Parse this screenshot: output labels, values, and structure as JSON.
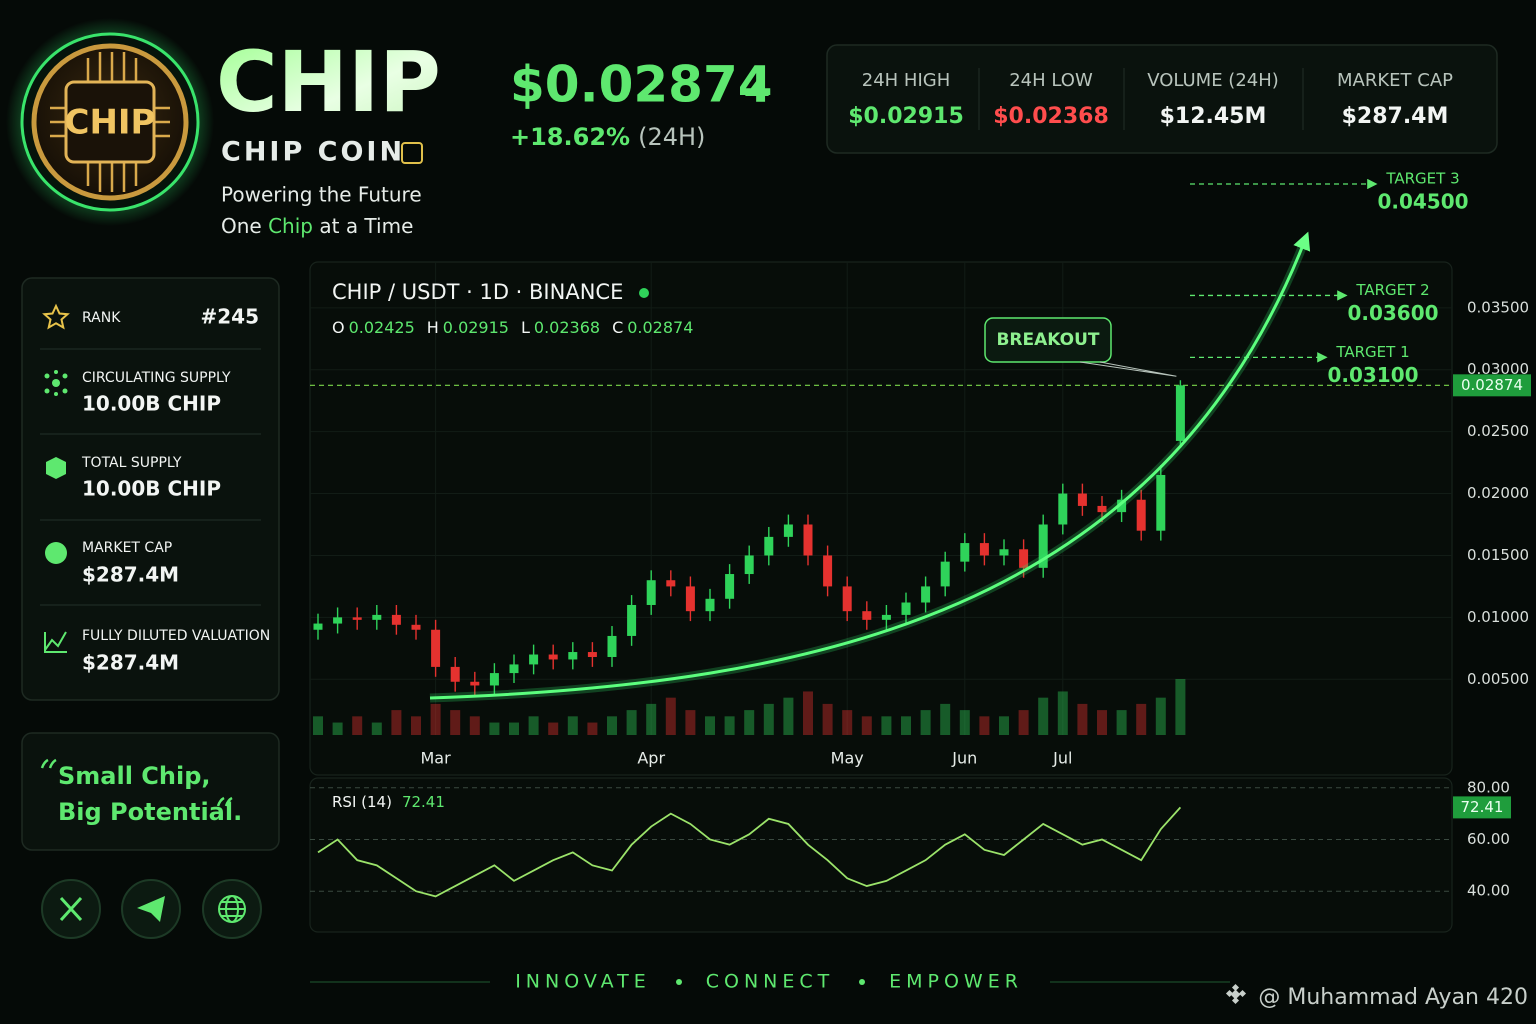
{
  "header": {
    "logo_text": "CHIP",
    "ticker": "CHIP",
    "name": "CHIP COIN",
    "tagline_1": "Powering the Future",
    "tagline_2_pre": "One ",
    "tagline_2_highlight": "Chip",
    "tagline_2_post": " at a Time",
    "price": "$0.02874",
    "change": "+18.62%",
    "change_period": "(24H)"
  },
  "stats": [
    {
      "label": "24H HIGH",
      "value": "$0.02915"
    },
    {
      "label": "24H LOW",
      "value": "$0.02368"
    },
    {
      "label": "VOLUME (24H)",
      "value": "$12.45M"
    },
    {
      "label": "MARKET CAP",
      "value": "$287.4M"
    }
  ],
  "sidebar": [
    {
      "label": "RANK",
      "value": "#245"
    },
    {
      "label": "CIRCULATING SUPPLY",
      "value": "10.00B CHIP"
    },
    {
      "label": "TOTAL SUPPLY",
      "value": "10.00B CHIP"
    },
    {
      "label": "MARKET CAP",
      "value": "$287.4M"
    },
    {
      "label": "FULLY DILUTED VALUATION",
      "value": "$287.4M"
    }
  ],
  "quote": {
    "line_1": "Small Chip,",
    "line_2": "Big Potential."
  },
  "footer": {
    "motto": [
      "INNOVATE",
      "CONNECT",
      "EMPOWER"
    ],
    "credit": "@ Muhammad Ayan 420"
  },
  "chart_data": {
    "type": "candlestick",
    "title": "CHIP / USDT · 1D · BINANCE",
    "ohlc_labels": [
      "O",
      "H",
      "L",
      "C"
    ],
    "open": [
      0.009,
      0.0095,
      0.01,
      0.0098,
      0.0102,
      0.0094,
      0.009,
      0.006,
      0.0048,
      0.0045,
      0.0055,
      0.0062,
      0.007,
      0.0066,
      0.0072,
      0.0068,
      0.0085,
      0.011,
      0.013,
      0.0125,
      0.0105,
      0.0115,
      0.0135,
      0.015,
      0.0165,
      0.0175,
      0.015,
      0.0125,
      0.0105,
      0.0098,
      0.0102,
      0.0112,
      0.0125,
      0.0145,
      0.016,
      0.015,
      0.0155,
      0.014,
      0.0175,
      0.02,
      0.019,
      0.0185,
      0.0195,
      0.017,
      0.02425
    ],
    "high": [
      0.0103,
      0.0108,
      0.0108,
      0.011,
      0.011,
      0.0102,
      0.0098,
      0.0068,
      0.0056,
      0.0063,
      0.007,
      0.0078,
      0.0078,
      0.008,
      0.008,
      0.0093,
      0.0118,
      0.0138,
      0.0138,
      0.0133,
      0.0123,
      0.0143,
      0.0158,
      0.0173,
      0.0183,
      0.0183,
      0.0158,
      0.0133,
      0.0113,
      0.011,
      0.012,
      0.0133,
      0.0153,
      0.0168,
      0.0168,
      0.0163,
      0.0163,
      0.0183,
      0.0208,
      0.0208,
      0.0198,
      0.0203,
      0.0203,
      0.0223,
      0.02915
    ],
    "low": [
      0.0082,
      0.0087,
      0.009,
      0.009,
      0.0086,
      0.0082,
      0.0052,
      0.004,
      0.0037,
      0.0037,
      0.0047,
      0.0054,
      0.0058,
      0.0058,
      0.006,
      0.006,
      0.0077,
      0.0102,
      0.0117,
      0.0097,
      0.0097,
      0.0107,
      0.0127,
      0.0142,
      0.0157,
      0.0142,
      0.0117,
      0.0097,
      0.009,
      0.009,
      0.0094,
      0.0104,
      0.0117,
      0.0137,
      0.0142,
      0.0142,
      0.0132,
      0.0132,
      0.0167,
      0.0182,
      0.0177,
      0.0177,
      0.0162,
      0.0162,
      0.02368
    ],
    "close": [
      0.0095,
      0.01,
      0.0098,
      0.0102,
      0.0094,
      0.009,
      0.006,
      0.0048,
      0.0045,
      0.0055,
      0.0062,
      0.007,
      0.0066,
      0.0072,
      0.0068,
      0.0085,
      0.011,
      0.013,
      0.0125,
      0.0105,
      0.0115,
      0.0135,
      0.015,
      0.0165,
      0.0175,
      0.015,
      0.0125,
      0.0105,
      0.0098,
      0.0102,
      0.0112,
      0.0125,
      0.0145,
      0.016,
      0.015,
      0.0155,
      0.014,
      0.0175,
      0.02,
      0.019,
      0.0185,
      0.0195,
      0.017,
      0.0215,
      0.02874
    ],
    "volume": [
      3,
      2,
      3,
      2,
      4,
      3,
      5,
      4,
      3,
      2,
      2,
      3,
      2,
      3,
      2,
      3,
      4,
      5,
      6,
      4,
      3,
      3,
      4,
      5,
      6,
      7,
      5,
      4,
      3,
      3,
      3,
      4,
      5,
      4,
      3,
      3,
      4,
      6,
      7,
      5,
      4,
      4,
      5,
      6,
      9
    ],
    "up_color": "#2fd35a",
    "down_color": "#e5322f",
    "xticks": [
      {
        "value": 6,
        "label": "Mar"
      },
      {
        "value": 17,
        "label": "Apr"
      },
      {
        "value": 27,
        "label": "May"
      },
      {
        "value": 33,
        "label": "Jun"
      },
      {
        "value": 38,
        "label": "Jul"
      }
    ],
    "ylim": [
      0.0005,
      0.0387
    ],
    "yticks": [
      {
        "value": 0.005,
        "label": "0.00500"
      },
      {
        "value": 0.01,
        "label": "0.01000"
      },
      {
        "value": 0.015,
        "label": "0.01500"
      },
      {
        "value": 0.02,
        "label": "0.02000"
      },
      {
        "value": 0.025,
        "label": "0.02500"
      },
      {
        "value": 0.03,
        "label": "0.03000"
      },
      {
        "value": 0.035,
        "label": "0.03500"
      }
    ],
    "grid": true,
    "annotation": "BREAKOUT",
    "targets": [
      {
        "label": "TARGET 1",
        "value": 0.031,
        "value_label": "0.03100"
      },
      {
        "label": "TARGET 2",
        "value": 0.036,
        "value_label": "0.03600"
      },
      {
        "label": "TARGET 3",
        "value": 0.045,
        "value_label": "0.04500"
      }
    ],
    "rsi": {
      "name": "RSI (14)",
      "color": "#9be36a",
      "ylim": [
        25,
        83
      ],
      "yticks": [
        {
          "value": 40,
          "label": "40.00"
        },
        {
          "value": 60,
          "label": "60.00"
        },
        {
          "value": 80,
          "label": "80.00"
        }
      ],
      "values": [
        55,
        60,
        52,
        50,
        45,
        40,
        38,
        42,
        46,
        50,
        44,
        48,
        52,
        55,
        50,
        48,
        58,
        65,
        70,
        66,
        60,
        58,
        62,
        68,
        66,
        58,
        52,
        45,
        42,
        44,
        48,
        52,
        58,
        62,
        56,
        54,
        60,
        66,
        62,
        58,
        60,
        56,
        52,
        64,
        72.41
      ]
    }
  }
}
